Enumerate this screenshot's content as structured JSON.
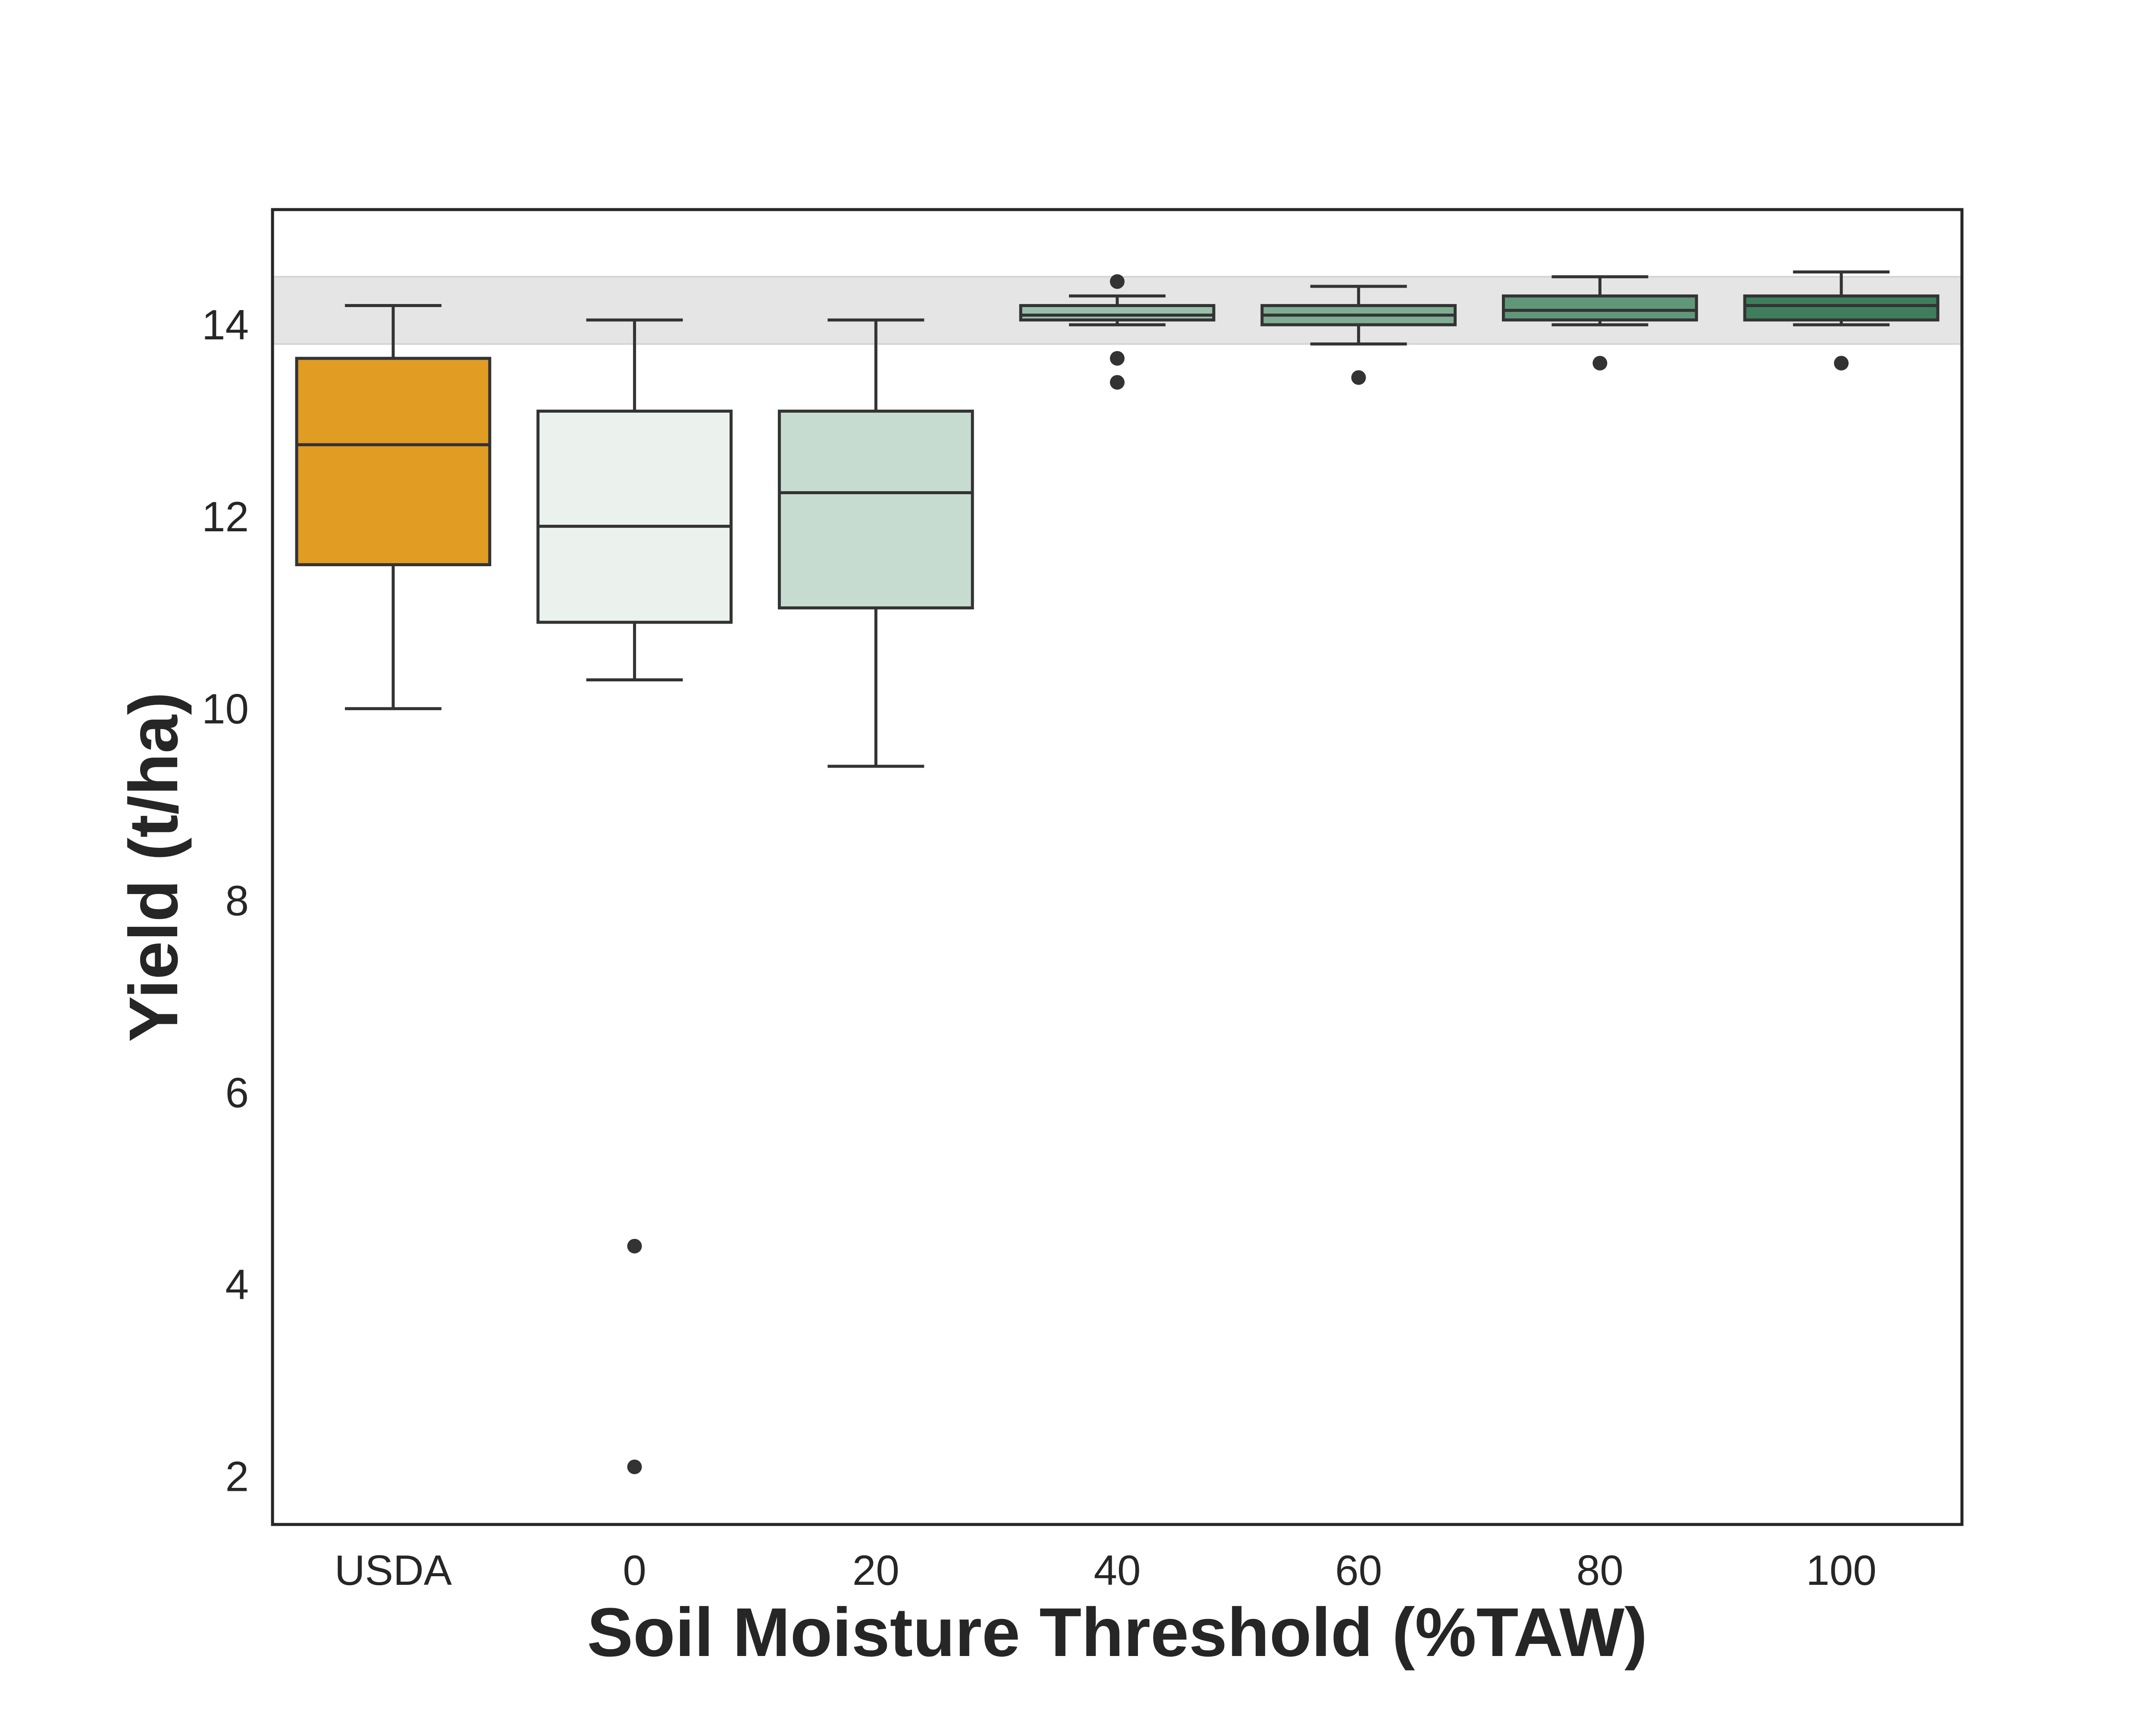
{
  "chart_data": {
    "type": "box",
    "title": "",
    "xlabel": "Soil Moisture Threshold (%TAW)",
    "ylabel": "Yield (t/ha)",
    "ylim": [
      1.5,
      15.2
    ],
    "yticks": [
      2,
      4,
      6,
      8,
      10,
      12,
      14
    ],
    "grid": false,
    "legend": "none",
    "reference_band": {
      "ymin": 13.8,
      "ymax": 14.5,
      "color": "#e5e5e5"
    },
    "categories": [
      "USDA",
      "0",
      "20",
      "40",
      "60",
      "80",
      "100"
    ],
    "boxes": [
      {
        "category": "USDA",
        "color": "#e09c23",
        "whisker_low": 10.0,
        "q1": 11.5,
        "median": 12.75,
        "q3": 13.65,
        "whisker_high": 14.2,
        "outliers": []
      },
      {
        "category": "0",
        "color": "#ebf2ee",
        "whisker_low": 10.3,
        "q1": 10.9,
        "median": 11.9,
        "q3": 13.1,
        "whisker_high": 14.05,
        "outliers": [
          4.4,
          2.1
        ]
      },
      {
        "category": "20",
        "color": "#c6dcd1",
        "whisker_low": 9.4,
        "q1": 11.05,
        "median": 12.25,
        "q3": 13.1,
        "whisker_high": 14.05,
        "outliers": []
      },
      {
        "category": "40",
        "color": "#9bc0ac",
        "whisker_low": 14.0,
        "q1": 14.05,
        "median": 14.1,
        "q3": 14.2,
        "whisker_high": 14.3,
        "outliers": [
          14.45,
          13.65,
          13.4
        ]
      },
      {
        "category": "60",
        "color": "#7fad94",
        "whisker_low": 13.8,
        "q1": 14.0,
        "median": 14.1,
        "q3": 14.2,
        "whisker_high": 14.4,
        "outliers": [
          13.45
        ]
      },
      {
        "category": "80",
        "color": "#60977a",
        "whisker_low": 14.0,
        "q1": 14.05,
        "median": 14.15,
        "q3": 14.3,
        "whisker_high": 14.5,
        "outliers": [
          13.6
        ]
      },
      {
        "category": "100",
        "color": "#3f7e5d",
        "whisker_low": 14.0,
        "q1": 14.05,
        "median": 14.2,
        "q3": 14.3,
        "whisker_high": 14.55,
        "outliers": [
          13.6
        ]
      }
    ]
  }
}
